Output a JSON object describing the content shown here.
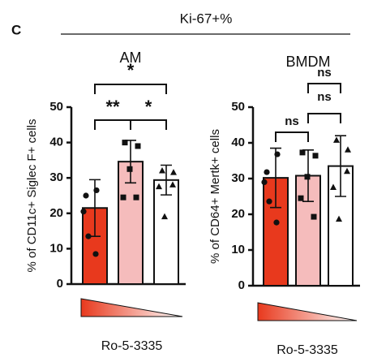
{
  "panel_label": "C",
  "header": "Ki-67+%",
  "chart_data": [
    {
      "type": "bar",
      "title": "AM",
      "y_label": "% of CD11c+ Siglec F+ cells",
      "x_label": "Ro-5-3335",
      "categories": [
        null,
        null,
        null
      ],
      "colors": [
        "#e8391d",
        "#f5bcbc",
        "#ffffff"
      ],
      "markers": [
        "circle",
        "square",
        "triangle"
      ],
      "values": [
        21.5,
        34.6,
        29.4
      ],
      "errors": [
        8,
        6,
        4.2
      ],
      "points": [
        [
          26.5,
          25,
          20.5,
          13.5,
          8.5
        ],
        [
          40,
          39,
          32.5,
          24.5,
          24.5
        ],
        [
          32,
          31.5,
          28,
          27.5,
          19
        ]
      ],
      "ylim": [
        0,
        50
      ],
      "yticks": [
        0,
        10,
        20,
        30,
        40,
        50
      ],
      "annotations": [
        "*",
        "**",
        "*"
      ]
    },
    {
      "type": "bar",
      "title": "BMDM",
      "y_label": "% of CD64+ Mertk+ cells",
      "x_label": "Ro-5-3335",
      "categories": [
        null,
        null,
        null
      ],
      "colors": [
        "#e8391d",
        "#f5bcbc",
        "#ffffff"
      ],
      "markers": [
        "circle",
        "square",
        "triangle"
      ],
      "values": [
        30.2,
        30.8,
        33.5
      ],
      "errors": [
        8.3,
        7.2,
        8.5
      ],
      "points": [
        [
          36.8,
          31.8,
          29,
          23.6,
          17.7
        ],
        [
          37.3,
          36.4,
          30.5,
          24.5,
          19.3
        ],
        [
          40.7,
          38,
          32,
          27.5,
          18.6
        ]
      ],
      "ylim": [
        0,
        50
      ],
      "yticks": [
        0,
        10,
        20,
        30,
        40,
        50
      ],
      "annotations": [
        "ns",
        "ns",
        "ns"
      ]
    }
  ]
}
